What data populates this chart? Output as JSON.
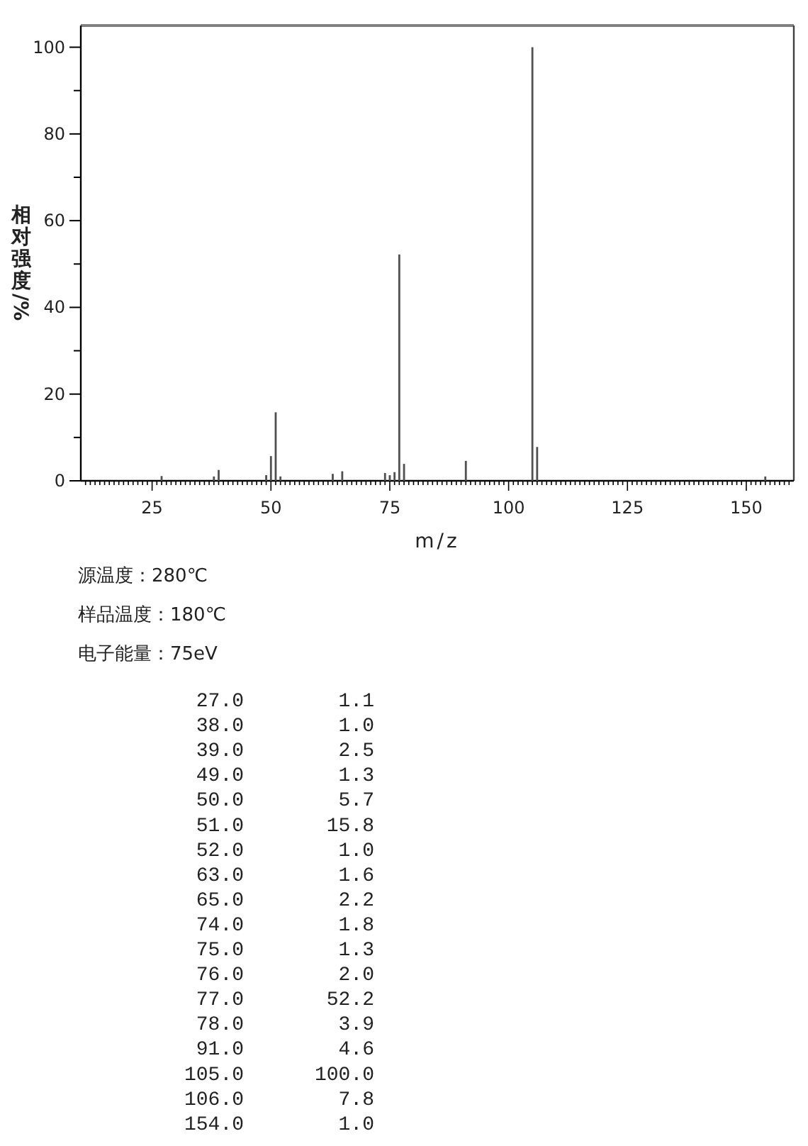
{
  "chart_data": {
    "type": "bar",
    "xlabel": "m/z",
    "ylabel": "相对强度/%",
    "annotations": [
      "源温度：280℃",
      "样品温度：180℃",
      "电子能量：75eV",
      "27.0",
      "1.1",
      "38.0",
      "1.0",
      "39.0",
      "2.5",
      "49.0",
      "1.3",
      "50.0",
      "5.7",
      "51.0",
      "15.8",
      "52.0",
      "1.0",
      "63.0",
      "1.6",
      "65.0",
      "2.2",
      "74.0",
      "1.8",
      "75.0",
      "1.3",
      "76.0",
      "2.0",
      "77.0",
      "52.2",
      "78.0",
      "3.9",
      "91.0",
      "4.6",
      "105.0",
      "100.0",
      "106.0",
      "7.8",
      "154.0",
      "1.0"
    ],
    "x": [
      27,
      38,
      39,
      49,
      50,
      51,
      52,
      63,
      65,
      74,
      75,
      76,
      77,
      78,
      91,
      105,
      106,
      154
    ],
    "values": [
      1.1,
      1.0,
      2.5,
      1.3,
      5.7,
      15.8,
      1.0,
      1.6,
      2.2,
      1.8,
      1.3,
      2.0,
      52.2,
      3.9,
      4.6,
      100.0,
      7.8,
      1.0
    ],
    "color": "#505050",
    "xlim": [
      10,
      160
    ],
    "ylim": [
      0,
      105
    ],
    "yticks": [
      0,
      {
        "value": 10,
        "label": null
      },
      20,
      {
        "value": 30,
        "label": null
      },
      40,
      {
        "value": 50,
        "label": null
      },
      60,
      {
        "value": 70,
        "label": null
      },
      80,
      {
        "value": 90,
        "label": null
      },
      100
    ],
    "xticks": [
      {
        "value": 11,
        "label": null
      },
      {
        "value": 12,
        "label": null
      },
      {
        "value": 13,
        "label": null
      },
      {
        "value": 14,
        "label": null
      },
      {
        "value": 15,
        "label": null
      },
      {
        "value": 16,
        "label": null
      },
      {
        "value": 17,
        "label": null
      },
      {
        "value": 18,
        "label": null
      },
      {
        "value": 19,
        "label": null
      },
      {
        "value": 20,
        "label": null
      },
      {
        "value": 21,
        "label": null
      },
      {
        "value": 22,
        "label": null
      },
      {
        "value": 23,
        "label": null
      },
      {
        "value": 24,
        "label": null
      },
      25,
      {
        "value": 26,
        "label": null
      },
      {
        "value": 27,
        "label": null
      },
      {
        "value": 28,
        "label": null
      },
      {
        "value": 29,
        "label": null
      },
      {
        "value": 30,
        "label": null
      },
      {
        "value": 31,
        "label": null
      },
      {
        "value": 32,
        "label": null
      },
      {
        "value": 33,
        "label": null
      },
      {
        "value": 34,
        "label": null
      },
      {
        "value": 35,
        "label": null
      },
      {
        "value": 36,
        "label": null
      },
      {
        "value": 37,
        "label": null
      },
      {
        "value": 38,
        "label": null
      },
      {
        "value": 39,
        "label": null
      },
      {
        "value": 40,
        "label": null
      },
      {
        "value": 41,
        "label": null
      },
      {
        "value": 42,
        "label": null
      },
      {
        "value": 43,
        "label": null
      },
      {
        "value": 44,
        "label": null
      },
      {
        "value": 45,
        "label": null
      },
      {
        "value": 46,
        "label": null
      },
      {
        "value": 47,
        "label": null
      },
      {
        "value": 48,
        "label": null
      },
      {
        "value": 49,
        "label": null
      },
      50,
      {
        "value": 51,
        "label": null
      },
      {
        "value": 52,
        "label": null
      },
      {
        "value": 53,
        "label": null
      },
      {
        "value": 54,
        "label": null
      },
      {
        "value": 55,
        "label": null
      },
      {
        "value": 56,
        "label": null
      },
      {
        "value": 57,
        "label": null
      },
      {
        "value": 58,
        "label": null
      },
      {
        "value": 59,
        "label": null
      },
      {
        "value": 60,
        "label": null
      },
      {
        "value": 61,
        "label": null
      },
      {
        "value": 62,
        "label": null
      },
      {
        "value": 63,
        "label": null
      },
      {
        "value": 64,
        "label": null
      },
      {
        "value": 65,
        "label": null
      },
      {
        "value": 66,
        "label": null
      },
      {
        "value": 67,
        "label": null
      },
      {
        "value": 68,
        "label": null
      },
      {
        "value": 69,
        "label": null
      },
      {
        "value": 70,
        "label": null
      },
      {
        "value": 71,
        "label": null
      },
      {
        "value": 72,
        "label": null
      },
      {
        "value": 73,
        "label": null
      },
      {
        "value": 74,
        "label": null
      },
      75,
      {
        "value": 76,
        "label": null
      },
      {
        "value": 77,
        "label": null
      },
      {
        "value": 78,
        "label": null
      },
      {
        "value": 79,
        "label": null
      },
      {
        "value": 80,
        "label": null
      },
      {
        "value": 81,
        "label": null
      },
      {
        "value": 82,
        "label": null
      },
      {
        "value": 83,
        "label": null
      },
      {
        "value": 84,
        "label": null
      },
      {
        "value": 85,
        "label": null
      },
      {
        "value": 86,
        "label": null
      },
      {
        "value": 87,
        "label": null
      },
      {
        "value": 88,
        "label": null
      },
      {
        "value": 89,
        "label": null
      },
      {
        "value": 90,
        "label": null
      },
      {
        "value": 91,
        "label": null
      },
      {
        "value": 92,
        "label": null
      },
      {
        "value": 93,
        "label": null
      },
      {
        "value": 94,
        "label": null
      },
      {
        "value": 95,
        "label": null
      },
      {
        "value": 96,
        "label": null
      },
      {
        "value": 97,
        "label": null
      },
      {
        "value": 98,
        "label": null
      },
      {
        "value": 99,
        "label": null
      },
      100,
      {
        "value": 101,
        "label": null
      },
      {
        "value": 102,
        "label": null
      },
      {
        "value": 103,
        "label": null
      },
      {
        "value": 104,
        "label": null
      },
      {
        "value": 105,
        "label": null
      },
      {
        "value": 106,
        "label": null
      },
      {
        "value": 107,
        "label": null
      },
      {
        "value": 108,
        "label": null
      },
      {
        "value": 109,
        "label": null
      },
      {
        "value": 110,
        "label": null
      },
      {
        "value": 111,
        "label": null
      },
      {
        "value": 112,
        "label": null
      },
      {
        "value": 113,
        "label": null
      },
      {
        "value": 114,
        "label": null
      },
      {
        "value": 115,
        "label": null
      },
      {
        "value": 116,
        "label": null
      },
      {
        "value": 117,
        "label": null
      },
      {
        "value": 118,
        "label": null
      },
      {
        "value": 119,
        "label": null
      },
      {
        "value": 120,
        "label": null
      },
      {
        "value": 121,
        "label": null
      },
      {
        "value": 122,
        "label": null
      },
      {
        "value": 123,
        "label": null
      },
      {
        "value": 124,
        "label": null
      },
      125,
      {
        "value": 126,
        "label": null
      },
      {
        "value": 127,
        "label": null
      },
      {
        "value": 128,
        "label": null
      },
      {
        "value": 129,
        "label": null
      },
      {
        "value": 130,
        "label": null
      },
      {
        "value": 131,
        "label": null
      },
      {
        "value": 132,
        "label": null
      },
      {
        "value": 133,
        "label": null
      },
      {
        "value": 134,
        "label": null
      },
      {
        "value": 135,
        "label": null
      },
      {
        "value": 136,
        "label": null
      },
      {
        "value": 137,
        "label": null
      },
      {
        "value": 138,
        "label": null
      },
      {
        "value": 139,
        "label": null
      },
      {
        "value": 140,
        "label": null
      },
      {
        "value": 141,
        "label": null
      },
      {
        "value": 142,
        "label": null
      },
      {
        "value": 143,
        "label": null
      },
      {
        "value": 144,
        "label": null
      },
      {
        "value": 145,
        "label": null
      },
      {
        "value": 146,
        "label": null
      },
      {
        "value": 147,
        "label": null
      },
      {
        "value": 148,
        "label": null
      },
      {
        "value": 149,
        "label": null
      },
      150,
      {
        "value": 151,
        "label": null
      },
      {
        "value": 152,
        "label": null
      },
      {
        "value": 153,
        "label": null
      },
      {
        "value": 154,
        "label": null
      },
      {
        "value": 155,
        "label": null
      },
      {
        "value": 156,
        "label": null
      },
      {
        "value": 157,
        "label": null
      },
      {
        "value": 158,
        "label": null
      },
      {
        "value": 159,
        "label": null
      }
    ]
  }
}
